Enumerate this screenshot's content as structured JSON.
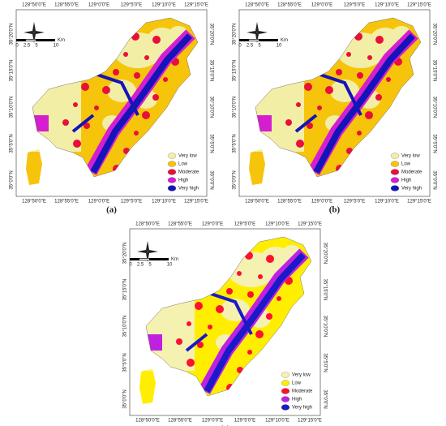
{
  "panels": [
    {
      "caption": "(a)",
      "top_labels": [
        "128°50'0\"E",
        "128°55'0\"E",
        "129°0'0\"E",
        "129°5'0\"E",
        "129°10'0\"E",
        "129°15'0\"E"
      ],
      "bottom_labels": [
        "128°50'0\"E",
        "128°55'0\"E",
        "129°0'0\"E",
        "129°5'0\"E",
        "129°10'0\"E",
        "129°15'0\"E"
      ],
      "left_labels": [
        "35°20'0\"N",
        "35°15'0\"N",
        "35°10'0\"N",
        "35°5'0\"N",
        "35°0'0\"N"
      ],
      "right_labels": [
        "35°20'0\"N",
        "35°15'0\"N",
        "35°10'0\"N",
        "35°5'0\"N",
        "35°0'0\"N"
      ],
      "scale": {
        "ticks": [
          "0",
          "2.5",
          "5",
          "10"
        ],
        "unit": "Km"
      },
      "legend": [
        {
          "label": "Very low",
          "color": "#f3eea6"
        },
        {
          "label": "Low",
          "color": "#f6c40a"
        },
        {
          "label": "Moderate",
          "color": "#e8103a"
        },
        {
          "label": "High",
          "color": "#d41ed0"
        },
        {
          "label": "Very high",
          "color": "#1414b8"
        }
      ]
    },
    {
      "caption": "(b)",
      "top_labels": [
        "128°50'0\"E",
        "128°55'0\"E",
        "129°0'0\"E",
        "129°5'0\"E",
        "129°10'0\"E",
        "129°15'0\"E"
      ],
      "bottom_labels": [
        "128°50'0\"E",
        "128°55'0\"E",
        "129°0'0\"E",
        "129°5'0\"E",
        "129°10'0\"E",
        "129°15'0\"E"
      ],
      "left_labels": [
        "35°20'0\"N",
        "35°15'0\"N",
        "35°10'0\"N",
        "35°5'0\"N",
        "35°0'0\"N"
      ],
      "right_labels": [
        "35°20'0\"N",
        "35°15'0\"N",
        "35°10'0\"N",
        "35°5'0\"N",
        "35°0'0\"N"
      ],
      "scale": {
        "ticks": [
          "0",
          "2.5",
          "5",
          "10"
        ],
        "unit": "Km"
      },
      "legend": [
        {
          "label": "Very low",
          "color": "#f3eea6"
        },
        {
          "label": "Low",
          "color": "#f6c40a"
        },
        {
          "label": "Moderate",
          "color": "#e8103a"
        },
        {
          "label": "High",
          "color": "#d41ed0"
        },
        {
          "label": "Very high",
          "color": "#1414b8"
        }
      ]
    },
    {
      "caption": "(c)",
      "top_labels": [
        "128°50'0\"E",
        "128°55'0\"E",
        "129°0'0\"E",
        "129°5'0\"E",
        "129°10'0\"E",
        "129°15'0\"E"
      ],
      "bottom_labels": [
        "128°50'0\"E",
        "128°55'0\"E",
        "129°0'0\"E",
        "129°5'0\"E",
        "129°10'0\"E",
        "129°15'0\"E"
      ],
      "left_labels": [
        "35°20'0\"N",
        "35°15'0\"N",
        "35°10'0\"N",
        "35°5'0\"N",
        "35°0'0\"N"
      ],
      "right_labels": [
        "35°20'0\"N",
        "35°15'0\"N",
        "35°10'0\"N",
        "35°5'0\"N",
        "35°0'0\"N"
      ],
      "scale": {
        "ticks": [
          "0",
          "2.5",
          "5",
          "10"
        ],
        "unit": "Km"
      },
      "legend": [
        {
          "label": "Very low",
          "color": "#f5f1b0"
        },
        {
          "label": "Low",
          "color": "#ffee00"
        },
        {
          "label": "Moderate",
          "color": "#ff1030"
        },
        {
          "label": "High",
          "color": "#c020e0"
        },
        {
          "label": "Very high",
          "color": "#1a1ac8"
        }
      ]
    }
  ]
}
